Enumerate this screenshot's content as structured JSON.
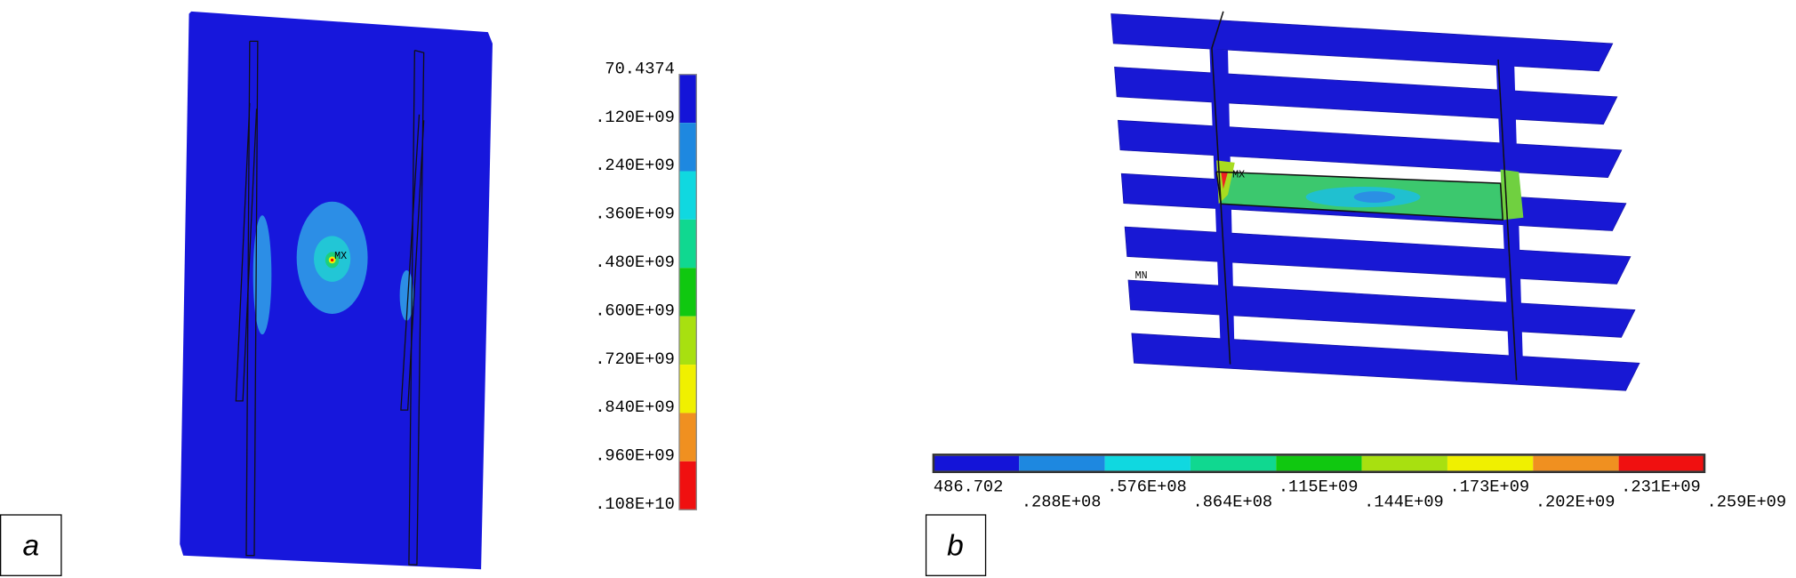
{
  "panel_a": {
    "label": "a",
    "legend_labels": [
      "70.4374",
      ".120E+09",
      ".240E+09",
      ".360E+09",
      ".480E+09",
      ".600E+09",
      ".720E+09",
      ".840E+09",
      ".960E+09",
      ".108E+10"
    ],
    "max_marker": "MX"
  },
  "panel_b": {
    "label": "b",
    "legend_labels": [
      "486.702",
      ".288E+08",
      ".576E+08",
      ".864E+08",
      ".115E+09",
      ".144E+09",
      ".173E+09",
      ".202E+09",
      ".231E+09",
      ".259E+09"
    ],
    "max_marker": "MX",
    "min_marker": "MN"
  }
}
